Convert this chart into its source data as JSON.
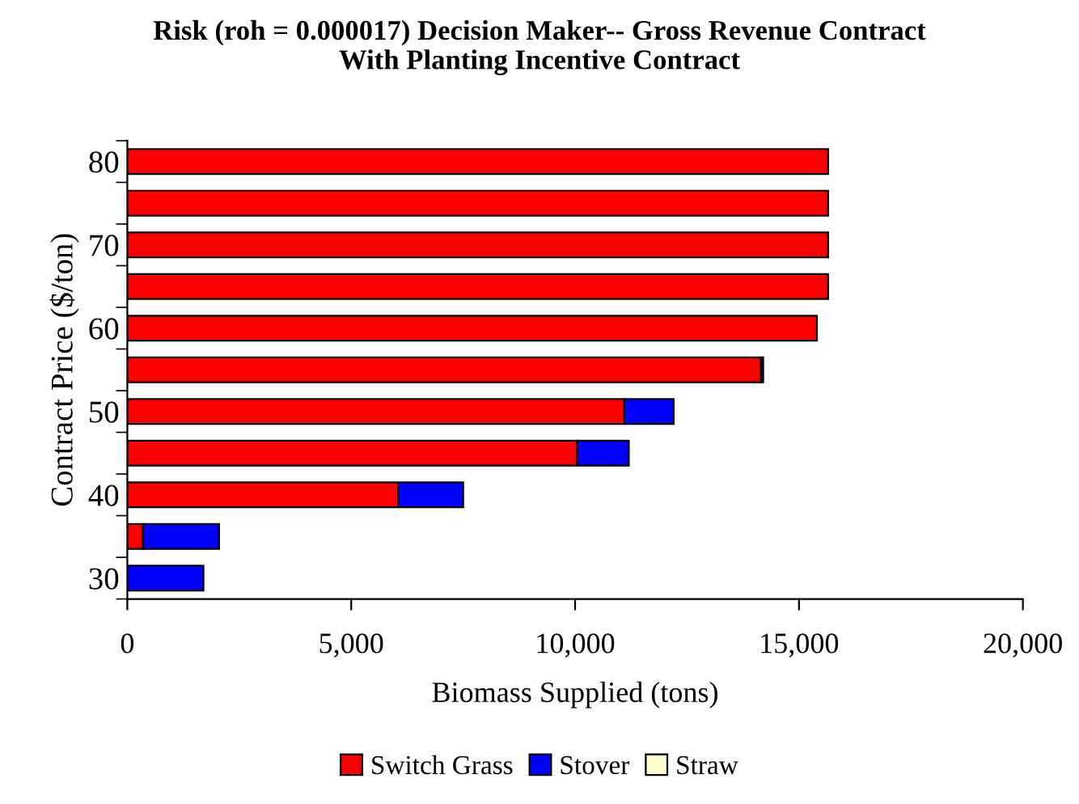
{
  "chart_data": {
    "type": "bar",
    "orientation": "horizontal",
    "stacked": true,
    "title": "Risk (roh = 0.000017) Decision Maker-- Gross Revenue Contract\nWith Planting Incentive Contract",
    "xlabel": "Biomass Supplied (tons)",
    "ylabel": "Contract Price ($/ton)",
    "categories": [
      "80",
      null,
      "70",
      null,
      "60",
      null,
      "50",
      null,
      "40",
      null,
      "30"
    ],
    "series": [
      {
        "name": "Switch Grass",
        "color": "#ff0000",
        "values": [
          15650,
          15650,
          15650,
          15650,
          15400,
          14150,
          11100,
          10050,
          6050,
          350,
          0
        ]
      },
      {
        "name": "Stover",
        "color": "#0000ff",
        "values": [
          0,
          0,
          0,
          0,
          0,
          50,
          1100,
          1150,
          1450,
          1700,
          1700
        ]
      },
      {
        "name": "Straw",
        "color": "#ffffcc",
        "values": [
          0,
          0,
          0,
          0,
          0,
          0,
          0,
          0,
          0,
          0,
          0
        ]
      }
    ],
    "xlim": [
      0,
      20000
    ],
    "xticks": [
      {
        "value": 0,
        "label": "0"
      },
      {
        "value": 5000,
        "label": "5,000"
      },
      {
        "value": 10000,
        "label": "10,000"
      },
      {
        "value": 15000,
        "label": "15,000"
      },
      {
        "value": 20000,
        "label": "20,000"
      }
    ],
    "grid": false,
    "legend": "bottom"
  }
}
